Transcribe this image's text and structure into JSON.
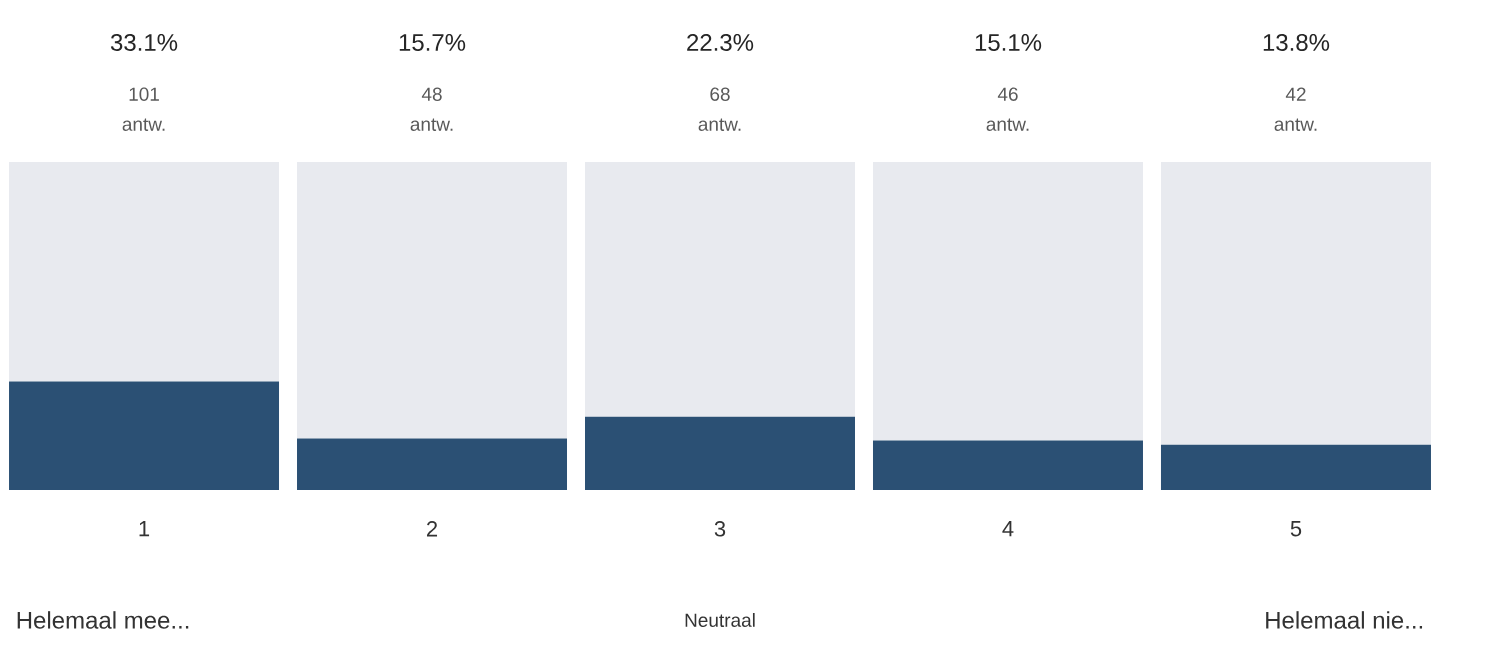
{
  "chart_data": {
    "type": "bar",
    "stacked": true,
    "categories": [
      "1",
      "2",
      "3",
      "4",
      "5"
    ],
    "series": [
      {
        "color": "#2b5074",
        "values": [
          33.1,
          15.7,
          22.3,
          15.1,
          13.8
        ],
        "value_labels": [
          "33.1%",
          "15.7%",
          "22.3%",
          "15.1%",
          "13.8%"
        ]
      },
      {
        "color": "#e8eaef",
        "values": [
          66.9,
          84.3,
          77.7,
          84.9,
          86.2
        ]
      }
    ],
    "annotations": [
      {
        "text": "101 antw.",
        "x": "1",
        "y": 100
      },
      {
        "text": "48 antw.",
        "x": "2",
        "y": 100
      },
      {
        "text": "68 antw.",
        "x": "3",
        "y": 100
      },
      {
        "text": "46 antw.",
        "x": "4",
        "y": 100
      },
      {
        "text": "42 antw.",
        "x": "5",
        "y": 100
      },
      "Helemaal mee...",
      "Neutraal",
      "Helemaal nie..."
    ],
    "tick_labels": "x"
  }
}
